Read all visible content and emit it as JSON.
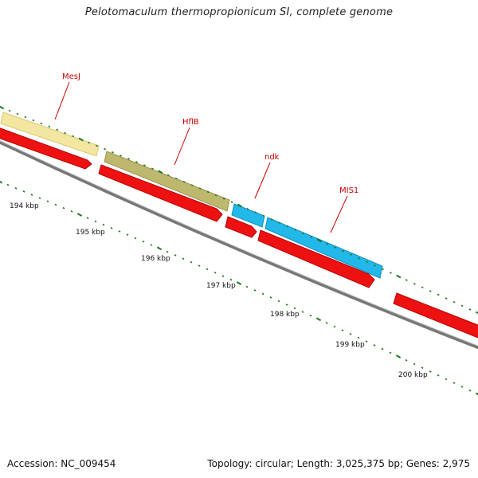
{
  "title": "Pelotomaculum thermopropionicum SI, complete genome",
  "accession": "Accession: NC_009454",
  "summary": "Topology: circular; Length: 3,025,375 bp; Genes: 2,975",
  "colors": {
    "backbone": "#777777",
    "forward_cds": "#ee1111",
    "tick": "#1a7a1a",
    "label": "#cc0000"
  },
  "ticks": [
    {
      "label": "194 kbp"
    },
    {
      "label": "195 kbp"
    },
    {
      "label": "196 kbp"
    },
    {
      "label": "197 kbp"
    },
    {
      "label": "198 kbp"
    },
    {
      "label": "199 kbp"
    },
    {
      "label": "200 kbp"
    }
  ],
  "genes": [
    {
      "label": "MesJ",
      "color": "#f3e6a0"
    },
    {
      "label": "HflB",
      "color": "#bdb86e"
    },
    {
      "label": "ndk",
      "color": "#22b8ea"
    },
    {
      "label": "MIS1",
      "color": "#22b8ea"
    }
  ]
}
